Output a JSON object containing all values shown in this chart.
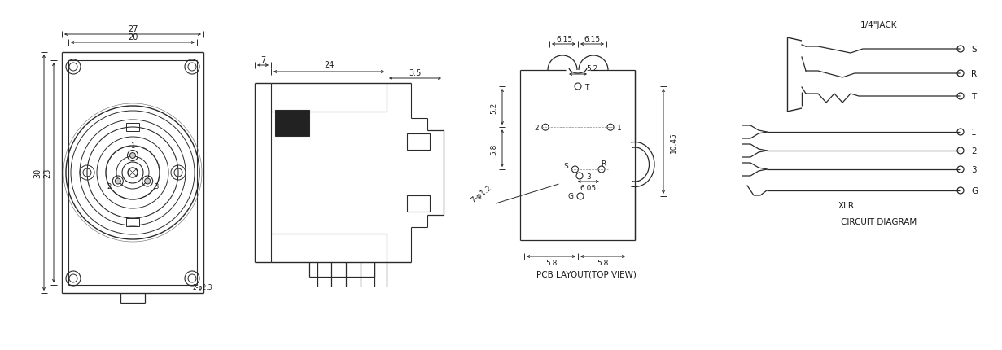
{
  "bg_color": "#ffffff",
  "line_color": "#2a2a2a",
  "dim_color": "#2a2a2a",
  "text_color": "#1a1a1a",
  "title_pcb": "PCB LAYOUT(TOP VIEW)",
  "title_circuit": "CIRCUIT DIAGRAM",
  "label_jack": "1/4\"JACK",
  "label_xlr": "XLR",
  "dim_27": "27",
  "dim_20": "20",
  "dim_30": "30",
  "dim_23": "23",
  "dim_7": "7",
  "dim_24": "24",
  "dim_35": "3.5",
  "dim_615a": "6.15",
  "dim_615b": "6.15",
  "dim_52a": "5.2",
  "dim_52b": "5.2",
  "dim_58a": "5.8",
  "dim_58b": "5.8",
  "dim_58c": "5.8",
  "dim_605": "6.05",
  "dim_1045": "10.45",
  "dim_hole": "7-φ1.2",
  "dim_23b": "2-φ2.3",
  "figw": 12.31,
  "figh": 4.31,
  "dpi": 100
}
